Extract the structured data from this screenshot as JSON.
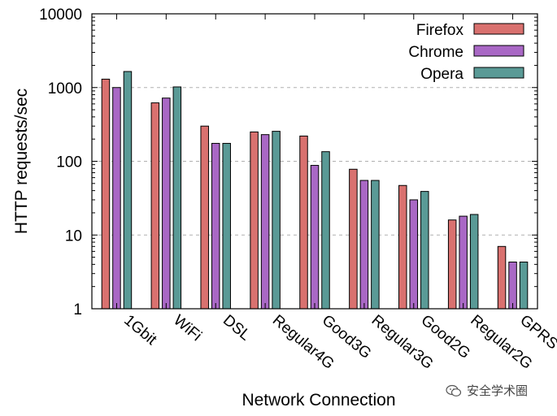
{
  "chart_data": {
    "type": "bar",
    "title": "",
    "xlabel": "Network Connection",
    "ylabel": "HTTP requests/sec",
    "yscale": "log",
    "ylim": [
      1,
      10000
    ],
    "yticks": [
      "1",
      "10",
      "100",
      "1000",
      "10000"
    ],
    "grid": "horizontal dashed",
    "legend_position": "top-right",
    "categories": [
      "1Gbit",
      "WiFi",
      "DSL",
      "Regular4G",
      "Good3G",
      "Regular3G",
      "Good2G",
      "Regular2G",
      "GPRS"
    ],
    "series": [
      {
        "name": "Firefox",
        "color": "#d9716f",
        "values": [
          1300,
          620,
          300,
          250,
          220,
          78,
          47,
          16,
          7
        ]
      },
      {
        "name": "Chrome",
        "color": "#a968c5",
        "values": [
          1000,
          720,
          175,
          230,
          88,
          55,
          30,
          18,
          4.3
        ]
      },
      {
        "name": "Opera",
        "color": "#5a9a96",
        "values": [
          1650,
          1020,
          175,
          255,
          135,
          55,
          39,
          19,
          4.3
        ]
      }
    ]
  },
  "watermark": {
    "text": "安全学术圈",
    "icon": "wechat-icon"
  }
}
